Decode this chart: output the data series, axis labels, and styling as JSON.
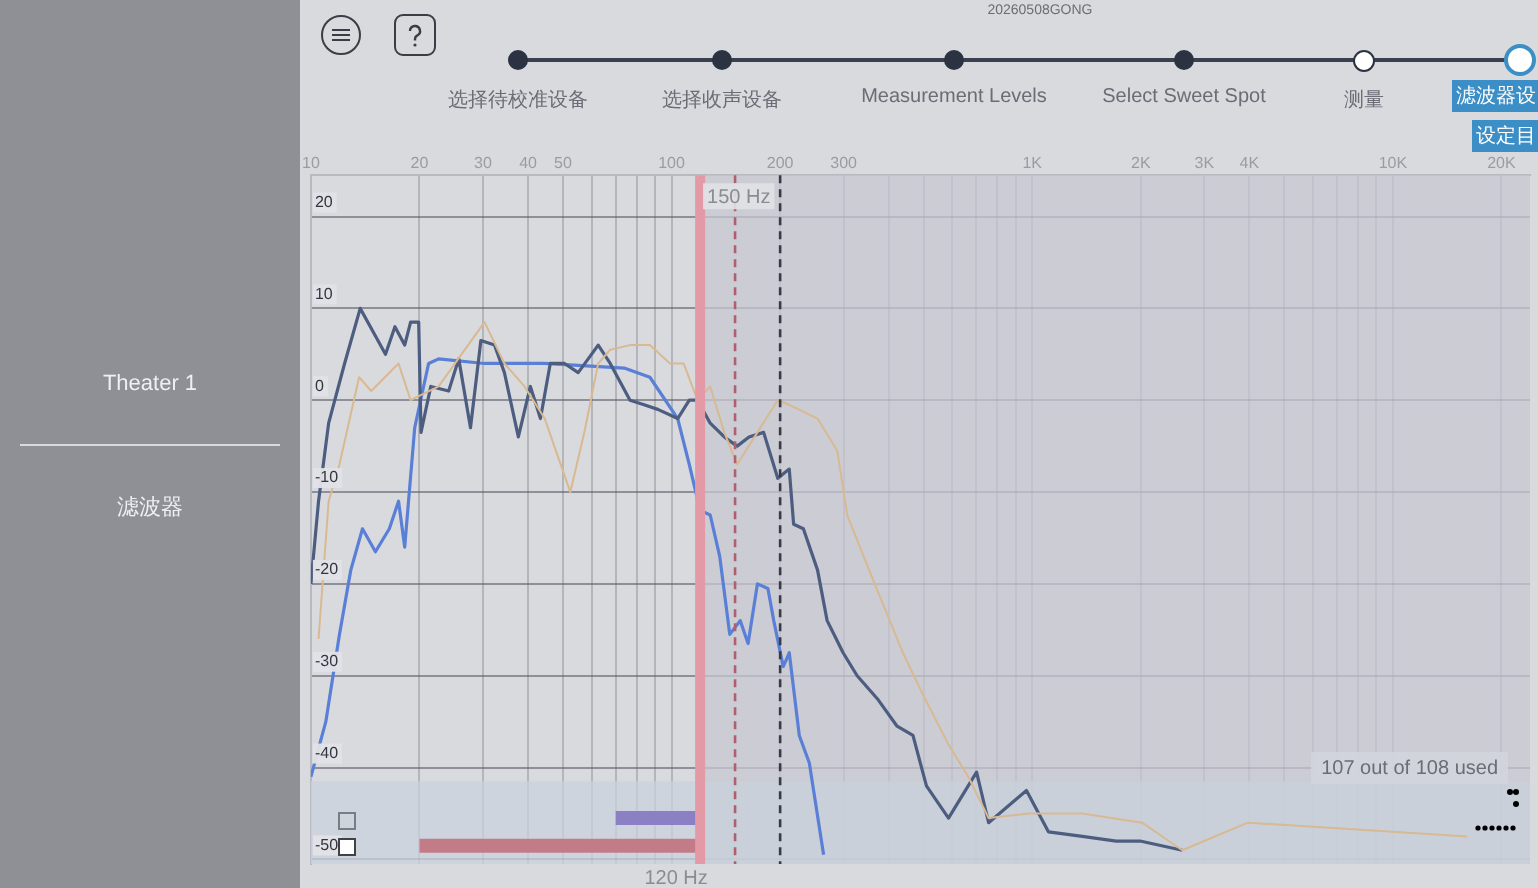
{
  "chart_data": {
    "type": "line",
    "log": "x",
    "grid": true,
    "legend": false,
    "marker": "none",
    "xlim": [
      10,
      24000
    ],
    "ylim": [
      -50.5,
      24.5
    ],
    "xticks": [
      10,
      20,
      30,
      40,
      50,
      {
        "value": 60,
        "label": null
      },
      {
        "value": 70,
        "label": null
      },
      {
        "value": 80,
        "label": null
      },
      {
        "value": 90,
        "label": null
      },
      100,
      200,
      300,
      {
        "value": 400,
        "label": null
      },
      {
        "value": 500,
        "label": null
      },
      {
        "value": 600,
        "label": null
      },
      {
        "value": 700,
        "label": null
      },
      {
        "value": 800,
        "label": null
      },
      {
        "value": 900,
        "label": null
      },
      {
        "value": 1000,
        "label": "1K"
      },
      {
        "value": 2000,
        "label": "2K"
      },
      {
        "value": 3000,
        "label": "3K"
      },
      {
        "value": 4000,
        "label": "4K"
      },
      {
        "value": 5000,
        "label": null
      },
      {
        "value": 6000,
        "label": null
      },
      {
        "value": 7000,
        "label": null
      },
      {
        "value": 8000,
        "label": null
      },
      {
        "value": 9000,
        "label": null
      },
      {
        "value": 10000,
        "label": "10K"
      },
      {
        "value": 20000,
        "label": "20K"
      }
    ],
    "yticks": [
      20,
      10,
      0,
      -10,
      -20,
      -30,
      -40,
      -50
    ],
    "series": [
      {
        "color": "#d8b992",
        "x": [
          10.5,
          11.2,
          12.0,
          13.6,
          14.7,
          17.5,
          18.9,
          22.6,
          30.3,
          34.4,
          39.1,
          44.5,
          52.4,
          57.3,
          62.6,
          67.6,
          76.7,
          87.1,
          99,
          108,
          118,
          128,
          140,
          152,
          173,
          197,
          212,
          254,
          288,
          307,
          353,
          438,
          497,
          586,
          665,
          757,
          977,
          1377,
          2018,
          2606,
          3963,
          16070
        ],
        "values": [
          -26,
          -11,
          -7,
          2.5,
          1,
          4,
          0,
          1.5,
          8.5,
          4,
          1.5,
          -2,
          -10,
          -3.5,
          4,
          5.5,
          6,
          6,
          4,
          4,
          0,
          1.5,
          -3.5,
          -7,
          -3.5,
          0,
          -0.5,
          -2,
          -5.5,
          -12.5,
          -18.5,
          -27.5,
          -32,
          -37.5,
          -41,
          -45.5,
          -45,
          -45,
          -46,
          -49,
          -46,
          -47.5
        ]
      },
      {
        "color": "#4c5d80",
        "x": [
          10,
          10.5,
          11.2,
          12.4,
          13.7,
          15.1,
          16.1,
          17.1,
          18.2,
          18.9,
          19.9,
          20.2,
          21.5,
          24.1,
          25.7,
          27.7,
          29.6,
          32.3,
          34.4,
          37.6,
          40.6,
          43.3,
          46.1,
          50.5,
          55.1,
          62.6,
          67.6,
          76.7,
          83.9,
          91.6,
          104,
          112,
          118,
          128,
          140,
          152,
          164,
          180,
          197,
          212,
          218,
          232,
          254,
          270,
          299,
          327,
          372,
          422,
          467,
          509,
          586,
          701,
          757,
          964,
          1109,
          1377,
          1710,
          1991,
          2606
        ],
        "values": [
          -20,
          -11,
          -2.5,
          4,
          10,
          7,
          5,
          8,
          6,
          8.5,
          8.5,
          -3.5,
          1.5,
          1,
          4.5,
          -3,
          6.5,
          6,
          3,
          -4,
          1.5,
          -2,
          4,
          4,
          3,
          6,
          4,
          0,
          -0.5,
          -1,
          -2,
          0,
          0,
          -2.5,
          -4,
          -5,
          -4,
          -3.5,
          -8.5,
          -7.5,
          -13.5,
          -14,
          -18.5,
          -24,
          -27.5,
          -30,
          -32.5,
          -35.5,
          -36.5,
          -42,
          -45.5,
          -40.5,
          -46,
          -42.5,
          -47,
          -47.5,
          -48,
          -48,
          -49
        ]
      },
      {
        "color": "#5a7fd6",
        "x": [
          10,
          11.0,
          12.0,
          12.9,
          13.9,
          15.1,
          16.5,
          17.5,
          18.2,
          19.4,
          21.2,
          22.6,
          30.3,
          44.5,
          73.9,
          87.1,
          104,
          112,
          120,
          128,
          136,
          145,
          155,
          163,
          173,
          185,
          192,
          204,
          212,
          226,
          241,
          264
        ],
        "values": [
          -41,
          -35,
          -25.5,
          -18.5,
          -14,
          -16.5,
          -14,
          -11,
          -16,
          -3,
          4,
          4.5,
          4,
          4,
          3.5,
          2.5,
          -2,
          -7,
          -12,
          -12.5,
          -17,
          -25.5,
          -24,
          -26.5,
          -20,
          -20.5,
          -24,
          -29,
          -27.5,
          -36.5,
          -39.5,
          -49.5
        ]
      },
      {
        "color": "#c27c88",
        "x": [
          20,
          120
        ],
        "values": [
          -48.5,
          -48.5
        ]
      },
      {
        "color": "#8c80c4",
        "x": [
          70,
          120
        ],
        "values": [
          -45.5,
          -45.5
        ]
      }
    ],
    "ref_lines": [
      {
        "axis": "x",
        "value": 120,
        "label": "120 Hz",
        "color": "#e49aa6",
        "line_style": "solid"
      },
      {
        "axis": "x",
        "value": 150,
        "label": "150 Hz",
        "color": "#b0606c",
        "line_style": "dashed"
      },
      {
        "axis": "x",
        "value": 200,
        "color": "#3a3a44",
        "line_style": "dashed"
      }
    ],
    "bands": [
      {
        "axis": "x",
        "from": 120,
        "to": 24000,
        "color": "#c6c7d0"
      },
      {
        "axis": "y",
        "from": -50.5,
        "to": -41.5,
        "color": "#c8d2dc"
      }
    ],
    "annotations": [
      "20260508GONG",
      "选择待校准设备",
      "选择收声设备",
      "Measurement Levels",
      "Select Sweet Spot",
      "测量",
      "滤波器设",
      "设定目",
      "Theater 1",
      "滤波器",
      "107 out of 108 used"
    ]
  }
}
